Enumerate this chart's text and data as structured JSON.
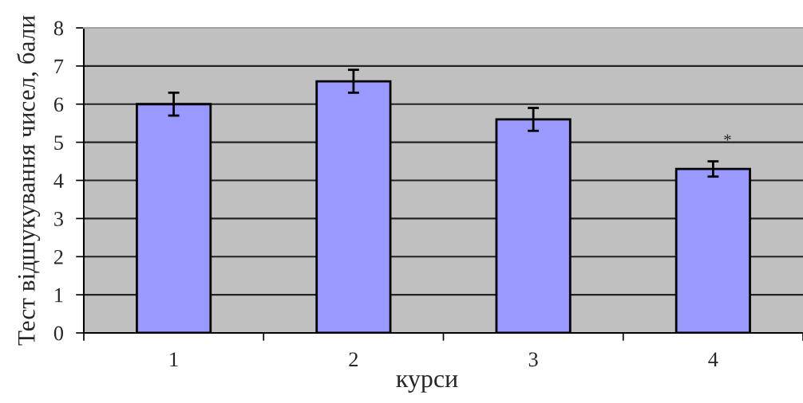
{
  "chart_data": {
    "type": "bar",
    "xlabel": "курси",
    "ylabel": "Тест відшукування чисел, бали",
    "categories": [
      "1",
      "2",
      "3",
      "4"
    ],
    "values": [
      6.0,
      6.6,
      5.6,
      4.3
    ],
    "errors": [
      0.3,
      0.3,
      0.3,
      0.2
    ],
    "color": "#9999ff",
    "ylim": [
      0,
      8
    ],
    "yticks": [
      0,
      1,
      2,
      3,
      4,
      5,
      6,
      7,
      8
    ],
    "grid": "y",
    "annotations": [
      {
        "text": "*",
        "x": "4",
        "y": 4.3
      }
    ]
  }
}
